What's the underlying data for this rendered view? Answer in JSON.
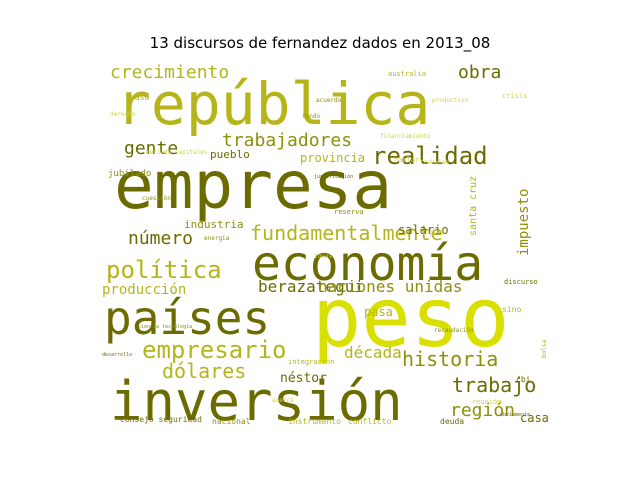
{
  "figure": {
    "title": "13 discursos de fernandez dados en 2013_08"
  },
  "palette": {
    "dark_olive": "#6b6b00",
    "olive": "#8f8f0a",
    "khaki": "#b5b51a",
    "lime_yellow": "#d9e000",
    "pale_yellow": "#cfd24a"
  },
  "words": [
    {
      "text": "empresa",
      "color": "#6b6b00"
    },
    {
      "text": "república",
      "color": "#b5b51a"
    },
    {
      "text": "peso",
      "color": "#d9e000"
    },
    {
      "text": "inversión",
      "color": "#6b6b00"
    },
    {
      "text": "economía",
      "color": "#6b6b00"
    },
    {
      "text": "países",
      "color": "#6b6b00"
    },
    {
      "text": "política",
      "color": "#b5b51a"
    },
    {
      "text": "empresario",
      "color": "#b5b51a"
    },
    {
      "text": "fundamentalmente",
      "color": "#b5b51a"
    },
    {
      "text": "realidad",
      "color": "#6b6b00"
    },
    {
      "text": "trabajadores",
      "color": "#8f8f0a"
    },
    {
      "text": "crecimiento",
      "color": "#b5b51a"
    },
    {
      "text": "dólares",
      "color": "#b5b51a"
    },
    {
      "text": "historia",
      "color": "#8f8f0a"
    },
    {
      "text": "trabajo",
      "color": "#6b6b00"
    },
    {
      "text": "región",
      "color": "#8f8f0a"
    },
    {
      "text": "obra",
      "color": "#6b6b00"
    },
    {
      "text": "gente",
      "color": "#6b6b00"
    },
    {
      "text": "número",
      "color": "#6b6b00"
    },
    {
      "text": "berazategui",
      "color": "#6b6b00"
    },
    {
      "text": "naciones unidas",
      "color": "#8f8f0a"
    },
    {
      "text": "producción",
      "color": "#b5b51a"
    },
    {
      "text": "década",
      "color": "#b5b51a"
    },
    {
      "text": "impuesto",
      "color": "#8f8f0a"
    },
    {
      "text": "santa cruz",
      "color": "#b5b51a"
    },
    {
      "text": "industria",
      "color": "#8f8f0a"
    },
    {
      "text": "provincia",
      "color": "#b5b51a"
    },
    {
      "text": "pueblo",
      "color": "#6b6b00"
    },
    {
      "text": "salario",
      "color": "#6b6b00"
    },
    {
      "text": "néstor",
      "color": "#6b6b00"
    },
    {
      "text": "casa",
      "color": "#6b6b00"
    },
    {
      "text": "pasa",
      "color": "#b5b51a"
    },
    {
      "text": "jubilado",
      "color": "#8f8f0a"
    },
    {
      "text": "consejo seguridad",
      "color": "#6b6b00"
    },
    {
      "text": "nacional",
      "color": "#8f8f0a"
    },
    {
      "text": "instrumento",
      "color": "#b5b51a"
    },
    {
      "text": "conflicto",
      "color": "#b5b51a"
    },
    {
      "text": "deuda",
      "color": "#6b6b00"
    },
    {
      "text": "integración",
      "color": "#b5b51a"
    },
    {
      "text": "reserva",
      "color": "#8f8f0a"
    },
    {
      "text": "hablar",
      "color": "#cfd24a"
    },
    {
      "text": "trabajan",
      "color": "#cfd24a"
    },
    {
      "text": "mercado capitales",
      "color": "#cfd24a"
    },
    {
      "text": "energía",
      "color": "#8f8f0a"
    },
    {
      "text": "reunión",
      "color": "#cfd24a"
    },
    {
      "text": "discurso",
      "color": "#6b6b00"
    },
    {
      "text": "cuestión",
      "color": "#8f8f0a"
    },
    {
      "text": "inglés",
      "color": "#cfd24a"
    },
    {
      "text": "ideas",
      "color": "#cfd24a"
    },
    {
      "text": "obviamente",
      "color": "#6b6b00"
    },
    {
      "text": "financiamiento",
      "color": "#cfd24a"
    },
    {
      "text": "sino",
      "color": "#b5b51a"
    },
    {
      "text": "recaudación",
      "color": "#8f8f0a"
    },
    {
      "text": "australia",
      "color": "#b5b51a"
    },
    {
      "text": "productivo",
      "color": "#cfd24a"
    },
    {
      "text": "derecho",
      "color": "#cfd24a"
    },
    {
      "text": "acuerdo",
      "color": "#8f8f0a"
    },
    {
      "text": "crisis",
      "color": "#cfd24a"
    },
    {
      "text": "justificación",
      "color": "#6b6b00"
    },
    {
      "text": "ciencia tecnología",
      "color": "#8f8f0a"
    },
    {
      "text": "desarrollo",
      "color": "#6b6b00"
    },
    {
      "text": "fondo",
      "color": "#8f8f0a"
    },
    {
      "text": "paso",
      "color": "#b5b51a"
    },
    {
      "text": "bolsa",
      "color": "#b5b51a"
    },
    {
      "text": "cbi",
      "color": "#6b6b00"
    },
    {
      "text": "acerca",
      "color": "#cfd24a"
    }
  ]
}
